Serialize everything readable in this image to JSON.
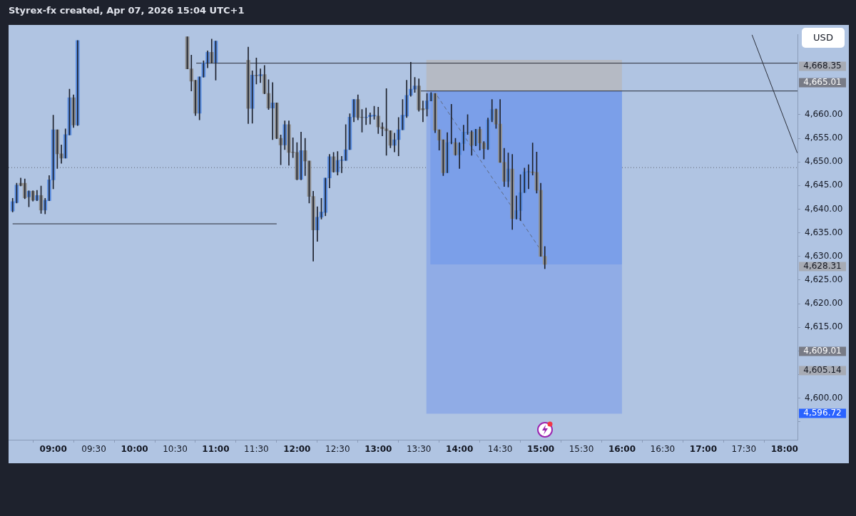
{
  "chart_data": {
    "type": "candlestick",
    "title": "Styrex-fx created, Apr 07, 2026 15:04 UTC+1",
    "x": [
      8.5,
      8.55,
      8.6,
      8.65,
      8.7,
      8.75,
      8.8,
      8.85,
      8.9,
      8.95,
      9,
      9.05,
      9.1,
      9.15,
      9.2,
      9.25,
      9.3,
      10.65,
      10.7,
      10.75,
      10.8,
      10.85,
      10.9,
      10.95,
      11,
      11.4,
      11.45,
      11.5,
      11.55,
      11.6,
      11.65,
      11.7,
      11.75,
      11.8,
      11.85,
      11.9,
      11.95,
      12,
      12.05,
      12.1,
      12.15,
      12.2,
      12.25,
      12.3,
      12.35,
      12.4,
      12.45,
      12.5,
      12.55,
      12.6,
      12.65,
      12.7,
      12.75,
      12.8,
      12.85,
      12.9,
      12.95,
      13,
      13.05,
      13.1,
      13.15,
      13.2,
      13.25,
      13.3,
      13.35,
      13.4,
      13.45,
      13.5,
      13.55,
      13.6,
      13.65,
      13.7,
      13.75,
      13.8,
      13.85,
      13.9,
      13.95,
      14,
      14.05,
      14.1,
      14.15,
      14.2,
      14.25,
      14.3,
      14.35,
      14.4,
      14.45,
      14.5,
      14.55,
      14.6,
      14.65,
      14.7,
      14.75,
      14.8,
      14.85,
      14.9,
      14.95,
      15,
      15.05
    ],
    "ohlc": [
      [
        4639.6,
        4642.3,
        4639.4,
        4641.6
      ],
      [
        4641.4,
        4645.5,
        4641.3,
        4645.1
      ],
      [
        4645.5,
        4646.6,
        4644.9,
        4645.0
      ],
      [
        4645.5,
        4646.4,
        4642.2,
        4642.4
      ],
      [
        4642.6,
        4643.9,
        4640.5,
        4643.8
      ],
      [
        4643.8,
        4643.9,
        4641.7,
        4641.9
      ],
      [
        4641.9,
        4644.0,
        4641.8,
        4642.9
      ],
      [
        4642.9,
        4644.9,
        4639.1,
        4639.8
      ],
      [
        4639.8,
        4642.3,
        4639.0,
        4641.9
      ],
      [
        4641.8,
        4647.1,
        4641.8,
        4646.2
      ],
      [
        4646.2,
        4659.9,
        4644.3,
        4656.8
      ],
      [
        4656.8,
        4656.8,
        4648.6,
        4651.7
      ],
      [
        4651.7,
        4653.6,
        4649.7,
        4650.8
      ],
      [
        4650.8,
        4657.0,
        4650.8,
        4655.8
      ],
      [
        4655.7,
        4665.4,
        4655.7,
        4663.6
      ],
      [
        4663.6,
        4664.2,
        4657.3,
        4657.8
      ],
      [
        4657.8,
        4675.7,
        4657.7,
        4675.7
      ],
      [
        4676.5,
        4676.5,
        4669.7,
        4669.7
      ],
      [
        4669.7,
        4672.6,
        4665.0,
        4667.1
      ],
      [
        4667.3,
        4667.3,
        4659.8,
        4660.3
      ],
      [
        4660.3,
        4668.0,
        4658.9,
        4668.0
      ],
      [
        4668.0,
        4671.4,
        4667.9,
        4671.0
      ],
      [
        4671.0,
        4673.5,
        4669.9,
        4673.2
      ],
      [
        4673.2,
        4676.0,
        4670.9,
        4671.0
      ],
      [
        4671.0,
        4675.6,
        4667.3,
        4675.6
      ],
      [
        4671.5,
        4674.3,
        4658.1,
        4661.3
      ],
      [
        4661.3,
        4669.3,
        4658.2,
        4668.4
      ],
      [
        4668.4,
        4672.0,
        4666.5,
        4668.2
      ],
      [
        4668.2,
        4669.7,
        4666.8,
        4668.5
      ],
      [
        4668.5,
        4670.4,
        4664.4,
        4664.5
      ],
      [
        4664.5,
        4667.4,
        4661.1,
        4661.4
      ],
      [
        4661.4,
        4666.8,
        4654.7,
        4662.5
      ],
      [
        4662.5,
        4662.5,
        4654.9,
        4655.0
      ],
      [
        4655.0,
        4655.7,
        4649.4,
        4653.6
      ],
      [
        4653.6,
        4658.7,
        4652.6,
        4657.9
      ],
      [
        4657.9,
        4658.7,
        4649.3,
        4652.0
      ],
      [
        4652.1,
        4655.1,
        4650.9,
        4652.0
      ],
      [
        4652.0,
        4654.1,
        4646.2,
        4646.3
      ],
      [
        4646.3,
        4656.3,
        4646.2,
        4652.4
      ],
      [
        4652.4,
        4655.0,
        4647.1,
        4650.2
      ],
      [
        4650.2,
        4650.2,
        4641.3,
        4642.7
      ],
      [
        4642.7,
        4643.8,
        4629.0,
        4635.6
      ],
      [
        4635.6,
        4640.5,
        4633.2,
        4638.3
      ],
      [
        4638.3,
        4642.3,
        4637.9,
        4639.4
      ],
      [
        4639.3,
        4646.6,
        4638.6,
        4646.6
      ],
      [
        4646.6,
        4651.6,
        4644.5,
        4651.1
      ],
      [
        4651.1,
        4652.0,
        4647.8,
        4647.9
      ],
      [
        4647.9,
        4652.2,
        4647.2,
        4650.3
      ],
      [
        4650.3,
        4651.2,
        4647.7,
        4650.4
      ],
      [
        4650.3,
        4657.9,
        4650.3,
        4652.6
      ],
      [
        4652.6,
        4660.2,
        4652.6,
        4659.5
      ],
      [
        4659.5,
        4663.2,
        4658.5,
        4663.2
      ],
      [
        4663.2,
        4664.2,
        4658.9,
        4659.4
      ],
      [
        4659.5,
        4661.1,
        4656.3,
        4659.4
      ],
      [
        4659.4,
        4661.4,
        4657.9,
        4659.5
      ],
      [
        4659.6,
        4660.4,
        4658.0,
        4659.9
      ],
      [
        4659.7,
        4661.8,
        4659.0,
        4659.9
      ],
      [
        4659.7,
        4661.6,
        4656.0,
        4657.4
      ],
      [
        4657.4,
        4658.3,
        4655.5,
        4657.0
      ],
      [
        4657.0,
        4665.5,
        4651.4,
        4656.6
      ],
      [
        4656.6,
        4656.6,
        4653.0,
        4653.5
      ],
      [
        4653.5,
        4656.1,
        4652.1,
        4654.7
      ],
      [
        4654.7,
        4659.4,
        4651.3,
        4656.8
      ],
      [
        4656.8,
        4663.2,
        4656.8,
        4659.9
      ],
      [
        4659.7,
        4667.3,
        4659.4,
        4664.1
      ],
      [
        4664.1,
        4671.1,
        4663.9,
        4665.4
      ],
      [
        4665.4,
        4667.9,
        4664.7,
        4666.1
      ],
      [
        4666.1,
        4667.6,
        4660.7,
        4661.0
      ],
      [
        4661.3,
        4662.9,
        4658.5,
        4661.0
      ],
      [
        4661.2,
        4664.5,
        4659.7,
        4662.9
      ],
      [
        4662.9,
        4664.7,
        4662.9,
        4664.5
      ],
      [
        4664.5,
        4664.5,
        4656.2,
        4656.7
      ],
      [
        4656.8,
        4656.8,
        4652.5,
        4654.6
      ],
      [
        4654.7,
        4654.7,
        4647.1,
        4647.7
      ],
      [
        4647.7,
        4656.2,
        4647.7,
        4654.1
      ],
      [
        4654.1,
        4662.2,
        4653.8,
        4654.2
      ],
      [
        4654.1,
        4655.0,
        4651.4,
        4651.5
      ],
      [
        4651.5,
        4654.1,
        4648.6,
        4653.9
      ],
      [
        4653.9,
        4657.8,
        4652.4,
        4656.3
      ],
      [
        4656.2,
        4660.0,
        4655.8,
        4656.3
      ],
      [
        4656.3,
        4656.6,
        4651.4,
        4653.5
      ],
      [
        4653.5,
        4656.9,
        4653.4,
        4656.9
      ],
      [
        4656.9,
        4657.4,
        4652.5,
        4654.0
      ],
      [
        4654.0,
        4654.3,
        4650.6,
        4652.8
      ],
      [
        4652.7,
        4659.3,
        4652.6,
        4658.9
      ],
      [
        4658.9,
        4663.2,
        4658.5,
        4661.1
      ],
      [
        4661.1,
        4661.2,
        4657.1,
        4658.0
      ],
      [
        4658.0,
        4663.2,
        4649.9,
        4649.9
      ],
      [
        4649.9,
        4652.9,
        4644.8,
        4645.9
      ],
      [
        4645.9,
        4651.9,
        4644.7,
        4648.5
      ],
      [
        4648.5,
        4651.6,
        4635.7,
        4638.0
      ],
      [
        4638.0,
        4642.8,
        4637.9,
        4639.7
      ],
      [
        4639.7,
        4647.3,
        4637.6,
        4643.5
      ],
      [
        4643.5,
        4648.7,
        4643.5,
        4647.9
      ],
      [
        4647.8,
        4649.4,
        4644.3,
        4648.0
      ],
      [
        4647.9,
        4654.0,
        4647.2,
        4647.7
      ],
      [
        4647.8,
        4652.1,
        4643.4,
        4644.0
      ],
      [
        4644.0,
        4645.5,
        4630.0,
        4630.0
      ],
      [
        4630.0,
        4632.1,
        4627.4,
        4628.31
      ]
    ],
    "series": [
      {
        "type": "line",
        "color": "#90ace6",
        "x": [
          13.59,
          16.0
        ],
        "values": [
          null,
          null
        ],
        "lower": [
          4596.72,
          4596.72
        ],
        "upper": [
          4665.01,
          4665.01
        ]
      },
      {
        "type": "line",
        "color": "#b5bac4",
        "x": [
          13.59,
          16.0
        ],
        "values": [
          null,
          null
        ],
        "lower": [
          4665.01,
          4665.01
        ],
        "upper": [
          4671.6,
          4671.6
        ]
      },
      {
        "type": "line",
        "color": "#7b9fe9",
        "x": [
          13.64,
          16.0
        ],
        "values": [
          null,
          null
        ],
        "lower": [
          4628.31,
          4628.31
        ],
        "upper": [
          4665.01,
          4665.01
        ]
      },
      {
        "type": "line",
        "color": "#2a2e39",
        "x": [
          13.52,
          18.16
        ],
        "values": [
          4665.01,
          4665.01
        ]
      },
      {
        "type": "line",
        "color": "#2a2e39",
        "x": [
          10.76,
          18.16
        ],
        "values": [
          4670.9,
          4670.9
        ]
      },
      {
        "type": "line",
        "color": "#2a2e39",
        "x": [
          8.5,
          11.75
        ],
        "values": [
          4636.9,
          4636.9
        ]
      },
      {
        "type": "line",
        "color": "#2a2e39",
        "x": [
          17.6,
          18.157
        ],
        "values": [
          4676.9,
          4651.9
        ]
      },
      {
        "type": "line",
        "color": "#5f6b82",
        "line_style": "dashed",
        "x": [
          13.725,
          15.06
        ],
        "values": [
          4664.0,
          4629.8
        ]
      }
    ],
    "ref_lines": [
      {
        "axis": "y",
        "value": 4648.8,
        "color": "#5d6470",
        "line_style": "dotted"
      }
    ],
    "xlim": [
      8.45,
      18.16
    ],
    "xticks": [
      {
        "value": 9,
        "label": "09:00"
      },
      {
        "value": 9.5,
        "label": "09:30"
      },
      {
        "value": 10,
        "label": "10:00"
      },
      {
        "value": 10.5,
        "label": "10:30"
      },
      {
        "value": 11,
        "label": "11:00"
      },
      {
        "value": 11.5,
        "label": "11:30"
      },
      {
        "value": 12,
        "label": "12:00"
      },
      {
        "value": 12.5,
        "label": "12:30"
      },
      {
        "value": 13,
        "label": "13:00"
      },
      {
        "value": 13.5,
        "label": "13:30"
      },
      {
        "value": 14,
        "label": "14:00"
      },
      {
        "value": 14.5,
        "label": "14:30"
      },
      {
        "value": 15,
        "label": "15:00"
      },
      {
        "value": 15.5,
        "label": "15:30"
      },
      {
        "value": 16,
        "label": "16:00"
      },
      {
        "value": 16.5,
        "label": "16:30"
      },
      {
        "value": 17,
        "label": "17:00"
      },
      {
        "value": 17.5,
        "label": "17:30"
      },
      {
        "value": 18,
        "label": "18:00"
      }
    ],
    "ylim": [
      4591.2,
      4677
    ],
    "yticks": [
      {
        "value": 4595,
        "label": null
      },
      {
        "value": 4600,
        "label": "4,600.00"
      },
      {
        "value": 4605,
        "label": null
      },
      {
        "value": 4610,
        "label": null
      },
      {
        "value": 4615,
        "label": "4,615.00"
      },
      {
        "value": 4620,
        "label": "4,620.00"
      },
      {
        "value": 4625,
        "label": "4,625.00"
      },
      {
        "value": 4630,
        "label": "4,630.00"
      },
      {
        "value": 4635,
        "label": "4,635.00"
      },
      {
        "value": 4640,
        "label": "4,640.00"
      },
      {
        "value": 4645,
        "label": "4,645.00"
      },
      {
        "value": 4650,
        "label": "4,650.00"
      },
      {
        "value": 4655,
        "label": "4,655.00"
      },
      {
        "value": 4660,
        "label": "4,660.00"
      }
    ],
    "annotations": [
      "USD",
      "4,668.35",
      "4,665.01",
      "4,628.31",
      "4,609.01",
      "4,605.14",
      "4,596.72"
    ],
    "legend": false,
    "grid": false
  }
}
